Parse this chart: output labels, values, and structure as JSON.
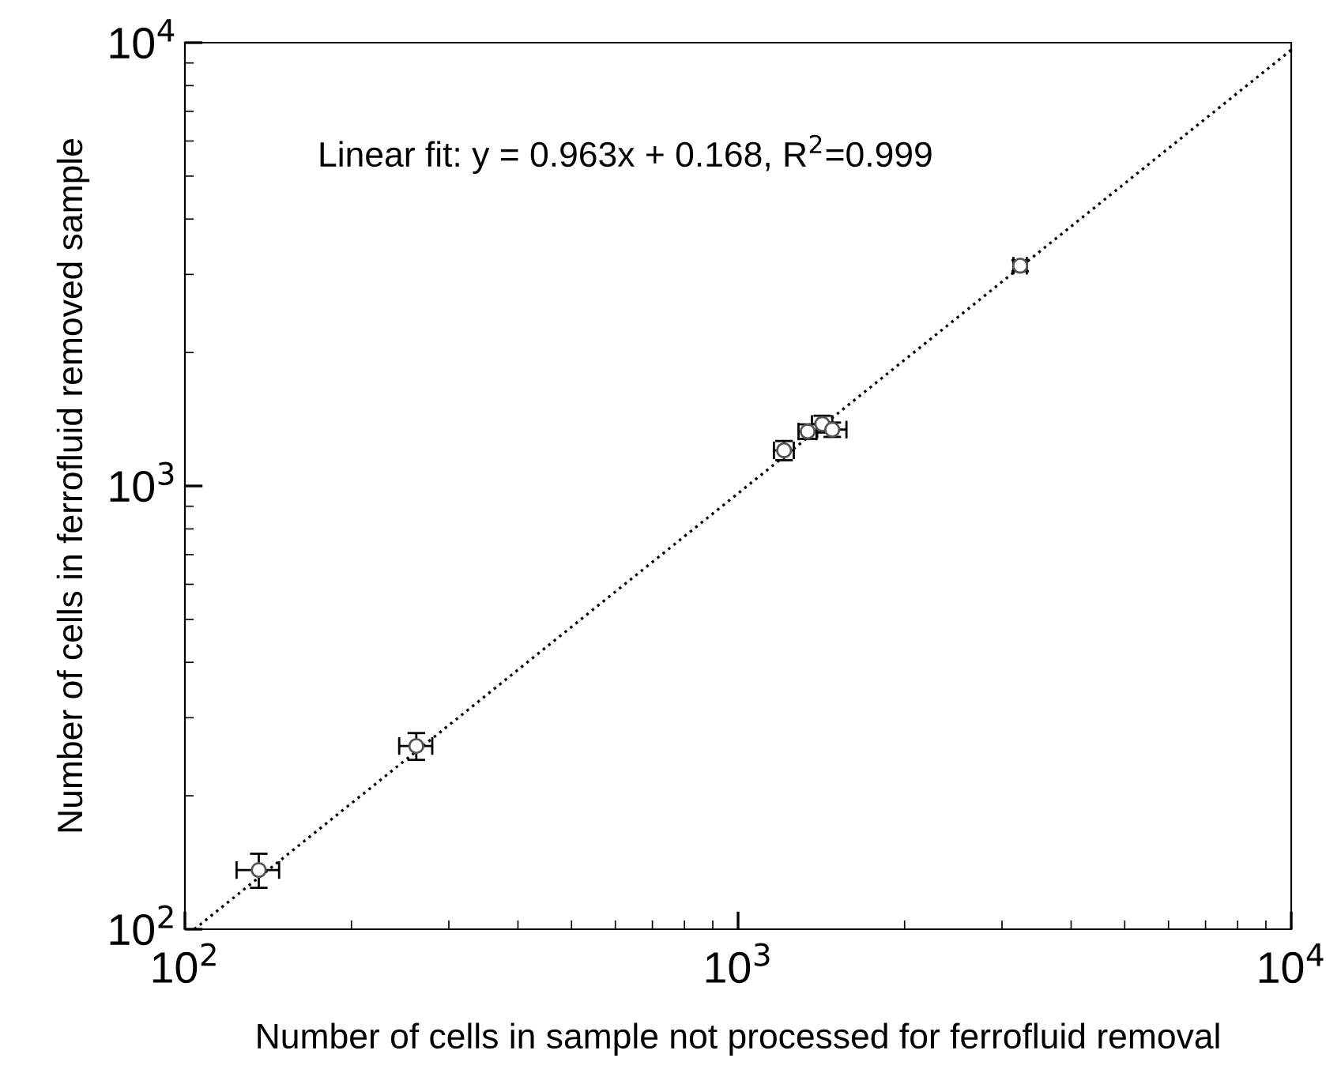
{
  "chart_data": {
    "type": "scatter",
    "xlabel": "Number of cells in sample not processed for ferrofluid removal",
    "ylabel": "Number of cells in ferrofluid removed sample",
    "log": "xy",
    "grid": false,
    "xlim": [
      100,
      10000
    ],
    "ylim": [
      100,
      10000
    ],
    "xticks": [
      {
        "value": 100,
        "label": "10$^{2}$"
      },
      {
        "value": 1000,
        "label": "10$^{3}$"
      },
      {
        "value": 10000,
        "label": "10$^{4}$"
      }
    ],
    "yticks": [
      {
        "value": 100,
        "label": "10$^{2}$"
      },
      {
        "value": 1000,
        "label": "10$^{3}$"
      },
      {
        "value": 10000,
        "label": "10$^{4}$"
      }
    ],
    "annotations": [
      "Linear fit: y = 0.963x + 0.168, R$^{2}$=0.999"
    ],
    "series": [
      {
        "marker": "circle",
        "color": "#555555",
        "x": [
          136,
          262,
          1211,
          1336,
          1420,
          1480,
          3236
        ],
        "values": [
          136,
          259,
          1203,
          1327,
          1380,
          1340,
          3140
        ],
        "errors": [
          12,
          18,
          60,
          50,
          60,
          50,
          90
        ],
        "xerrors": [
          12,
          18,
          50,
          50,
          60,
          90,
          90
        ]
      },
      {
        "type": "line",
        "marker": "none",
        "line_style": "dotted",
        "color": "#000000",
        "x": [
          104,
          10000
        ],
        "values": [
          100,
          9630
        ]
      }
    ]
  }
}
